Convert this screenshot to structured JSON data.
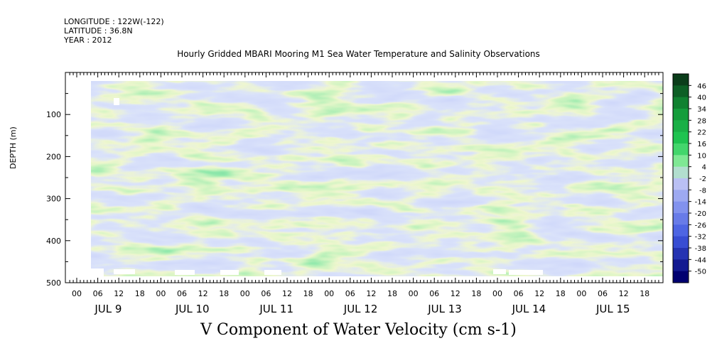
{
  "header": {
    "longitude": "LONGITUDE : 122W(-122)",
    "latitude": "LATITUDE : 36.8N",
    "year": "YEAR : 2012",
    "title": "Hourly Gridded MBARI Mooring M1 Sea Water Temperature and Salinity Observations"
  },
  "footer_title": "V Component of Water Velocity (cm s-1)",
  "chart_data": {
    "type": "heatmap",
    "title": "Hourly Gridded MBARI Mooring M1 Sea Water Temperature and Salinity Observations",
    "variable": "V Component of Water Velocity (cm s-1)",
    "ylabel": "DEPTH (m)",
    "y_range": [
      0,
      500
    ],
    "y_inverted": true,
    "y_ticks": [
      100,
      200,
      300,
      400,
      500
    ],
    "x_hour_labels": [
      "00",
      "06",
      "12",
      "18",
      "00",
      "06",
      "12",
      "18",
      "00",
      "06",
      "12",
      "18",
      "00",
      "06",
      "12",
      "18",
      "00",
      "06",
      "12",
      "18",
      "00",
      "06",
      "12",
      "18",
      "00",
      "06",
      "12",
      "18"
    ],
    "x_day_labels": [
      "JUL 9",
      "JUL 10",
      "JUL 11",
      "JUL 12",
      "JUL 13",
      "JUL 14",
      "JUL 15"
    ],
    "colorbar_labels": [
      "46",
      "40",
      "34",
      "28",
      "22",
      "16",
      "10",
      "4",
      "-2",
      "-8",
      "-14",
      "-20",
      "-26",
      "-32",
      "-38",
      "-44",
      "-50"
    ],
    "colorbar_range": [
      -50,
      52
    ],
    "colors": {
      "strong_positive": "#0a4d1e",
      "positive": "#22cc55",
      "weak_positive": "#88ee99",
      "weak_negative": "#b0b8f5",
      "negative": "#7f90ee",
      "strong_negative": "#000080"
    },
    "field_summary": [
      {
        "day": "JUL 9",
        "surface_to_200m": "positive",
        "200m_to_480m": "negative"
      },
      {
        "day": "JUL 10",
        "surface_to_200m": "positive",
        "200m_to_480m": "mixed"
      },
      {
        "day": "JUL 11",
        "surface_to_200m": "mixed",
        "200m_to_480m": "negative"
      },
      {
        "day": "JUL 12",
        "surface_to_200m": "positive",
        "200m_to_480m": "mixed"
      },
      {
        "day": "JUL 13",
        "surface_to_200m": "mixed",
        "200m_to_480m": "negative"
      },
      {
        "day": "JUL 14",
        "surface_to_200m": "positive",
        "200m_to_480m": "negative"
      },
      {
        "day": "JUL 15",
        "surface_to_200m": "positive",
        "200m_to_480m": "mixed"
      }
    ]
  }
}
